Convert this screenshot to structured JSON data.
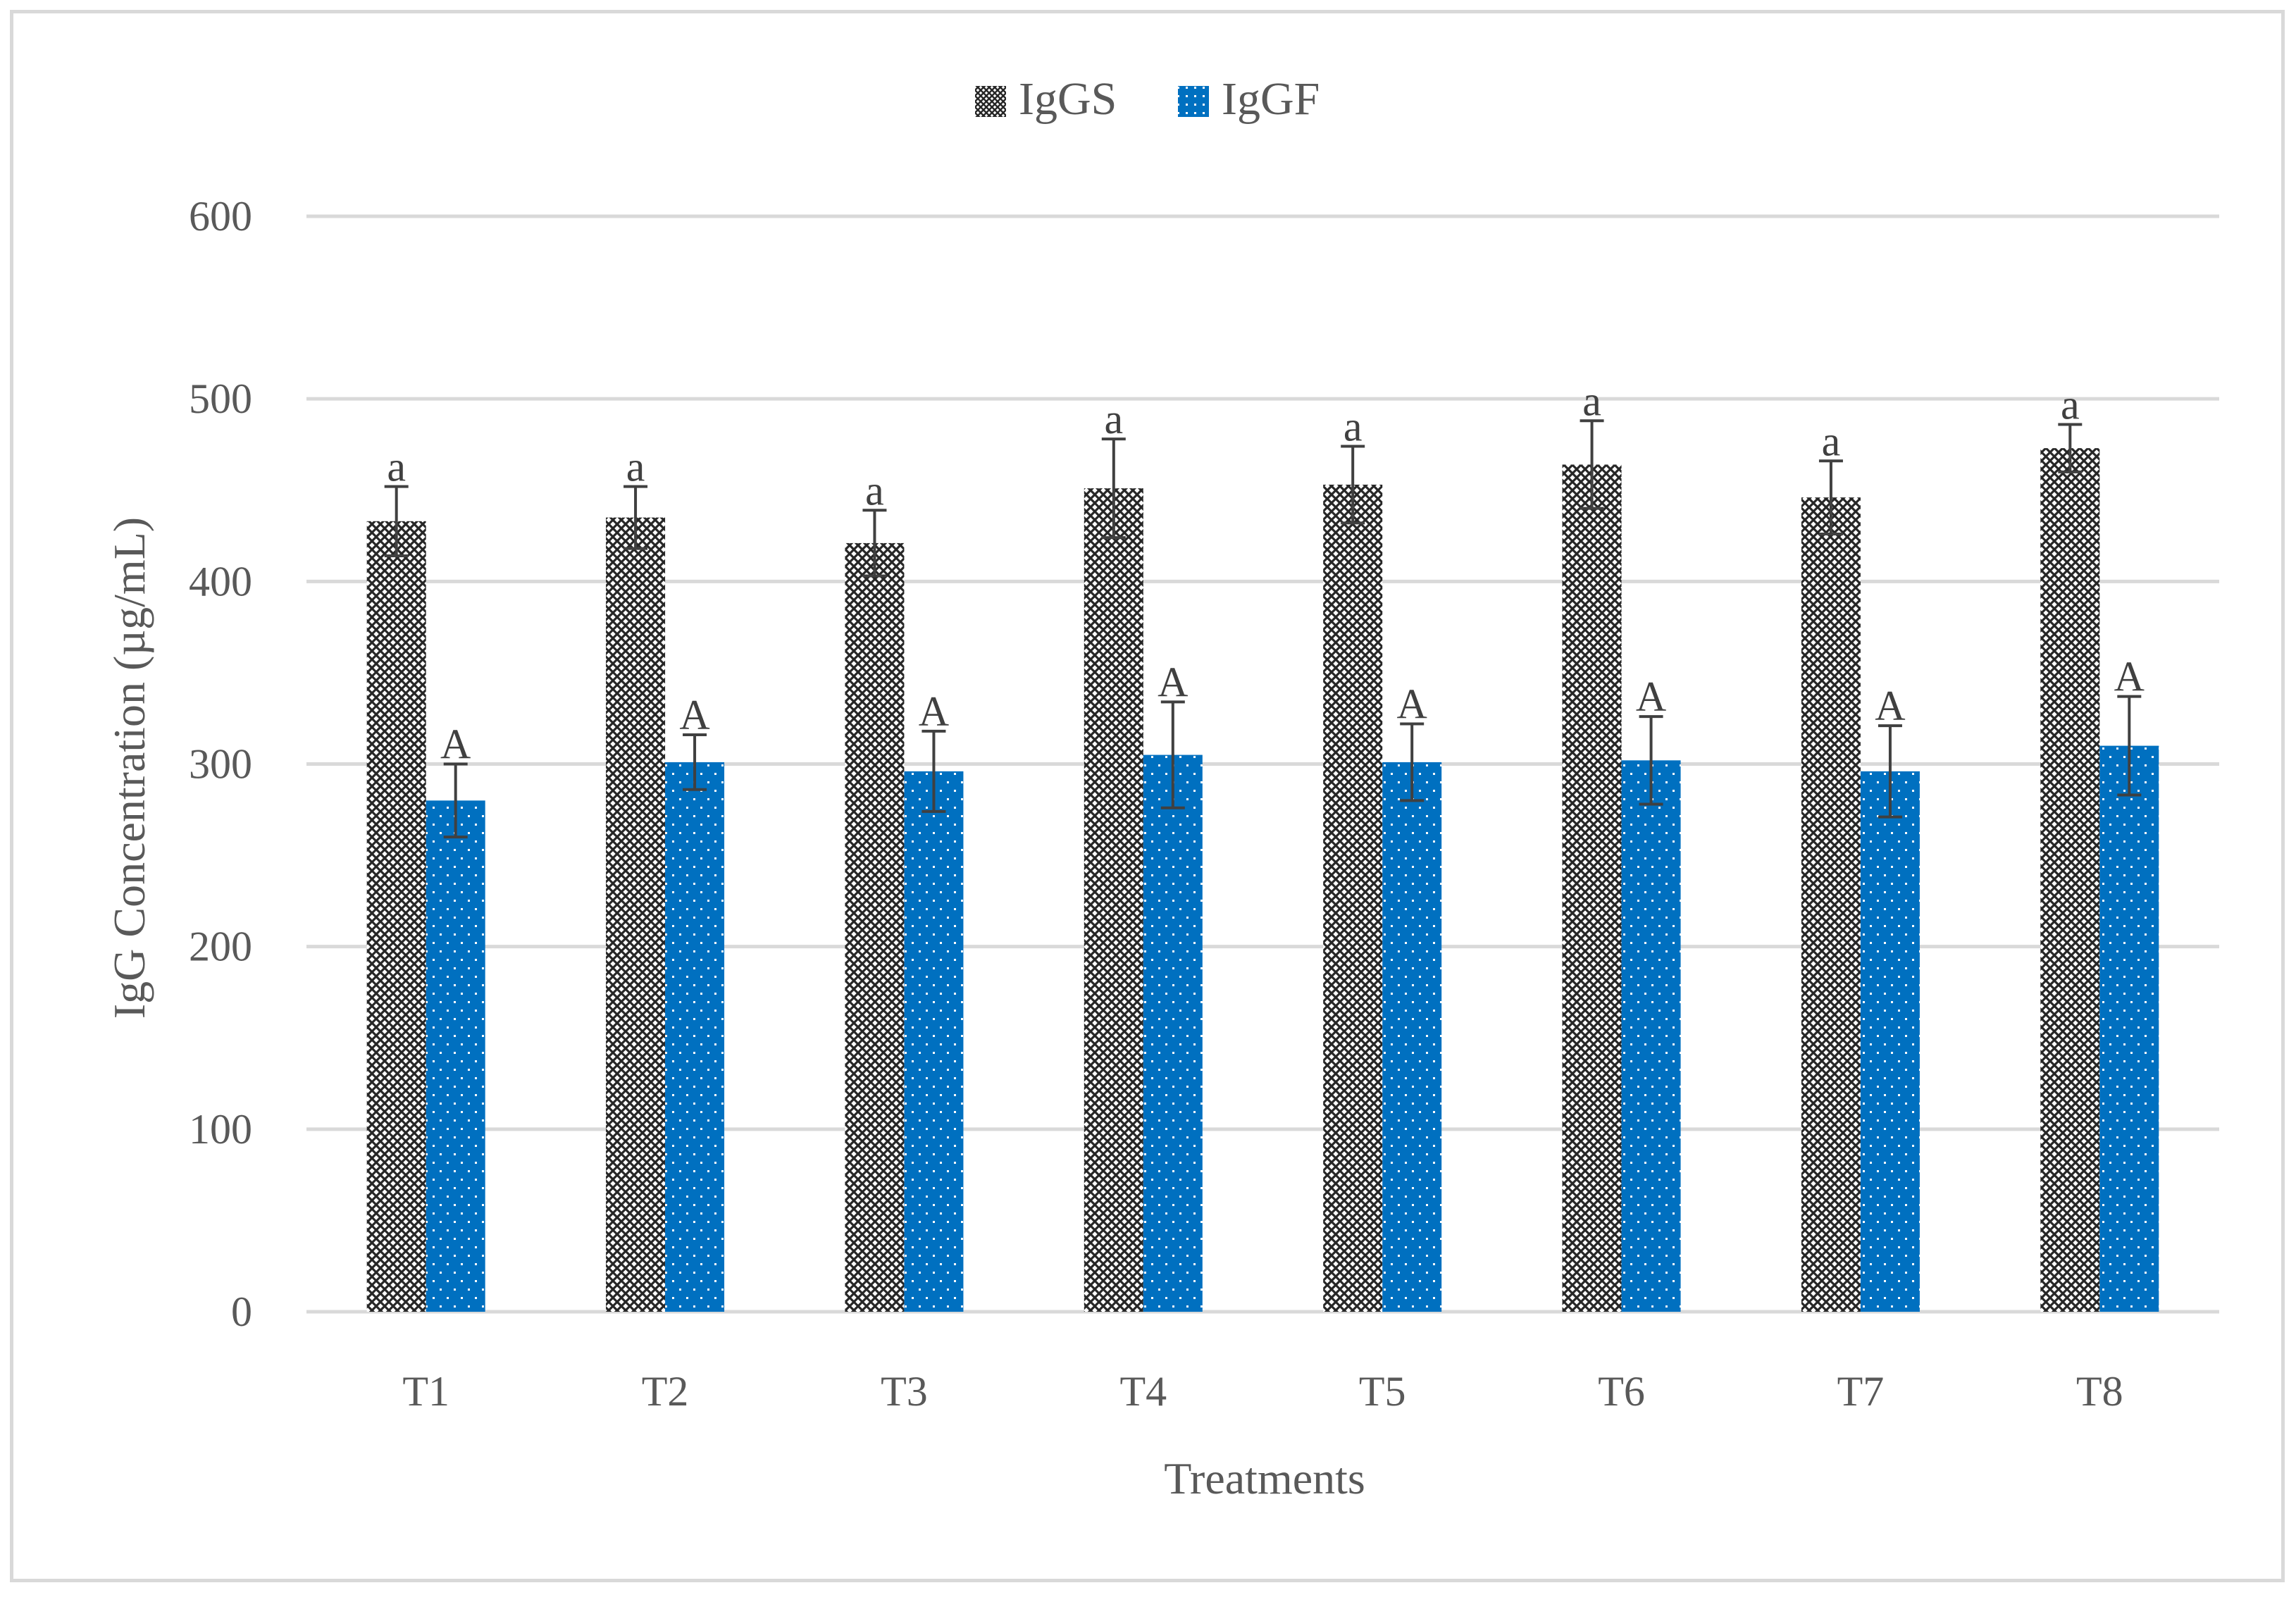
{
  "chart_data": {
    "type": "bar",
    "title": "",
    "xlabel": "Treatments",
    "ylabel": "IgG Concentration  (µg/mL)",
    "ylim": [
      0,
      600
    ],
    "yticks": [
      0,
      100,
      200,
      300,
      400,
      500,
      600
    ],
    "grid": true,
    "legend_position": "top-center",
    "categories": [
      "T1",
      "T2",
      "T3",
      "T4",
      "T5",
      "T6",
      "T7",
      "T8"
    ],
    "series": [
      {
        "name": "IgGS",
        "color": "#262626",
        "pattern": "crosshatch",
        "values": [
          433,
          435,
          421,
          451,
          453,
          464,
          446,
          473
        ],
        "errors": [
          19,
          17,
          18,
          27,
          21,
          24,
          20,
          13
        ],
        "labels": [
          "a",
          "a",
          "a",
          "a",
          "a",
          "a",
          "a",
          "a"
        ]
      },
      {
        "name": "IgGF",
        "color": "#0070c0",
        "pattern": "dots",
        "values": [
          280,
          301,
          296,
          305,
          301,
          302,
          296,
          310
        ],
        "errors": [
          20,
          15,
          22,
          29,
          21,
          24,
          25,
          27
        ],
        "labels": [
          "A",
          "A",
          "A",
          "A",
          "A",
          "A",
          "A",
          "A"
        ]
      }
    ]
  }
}
